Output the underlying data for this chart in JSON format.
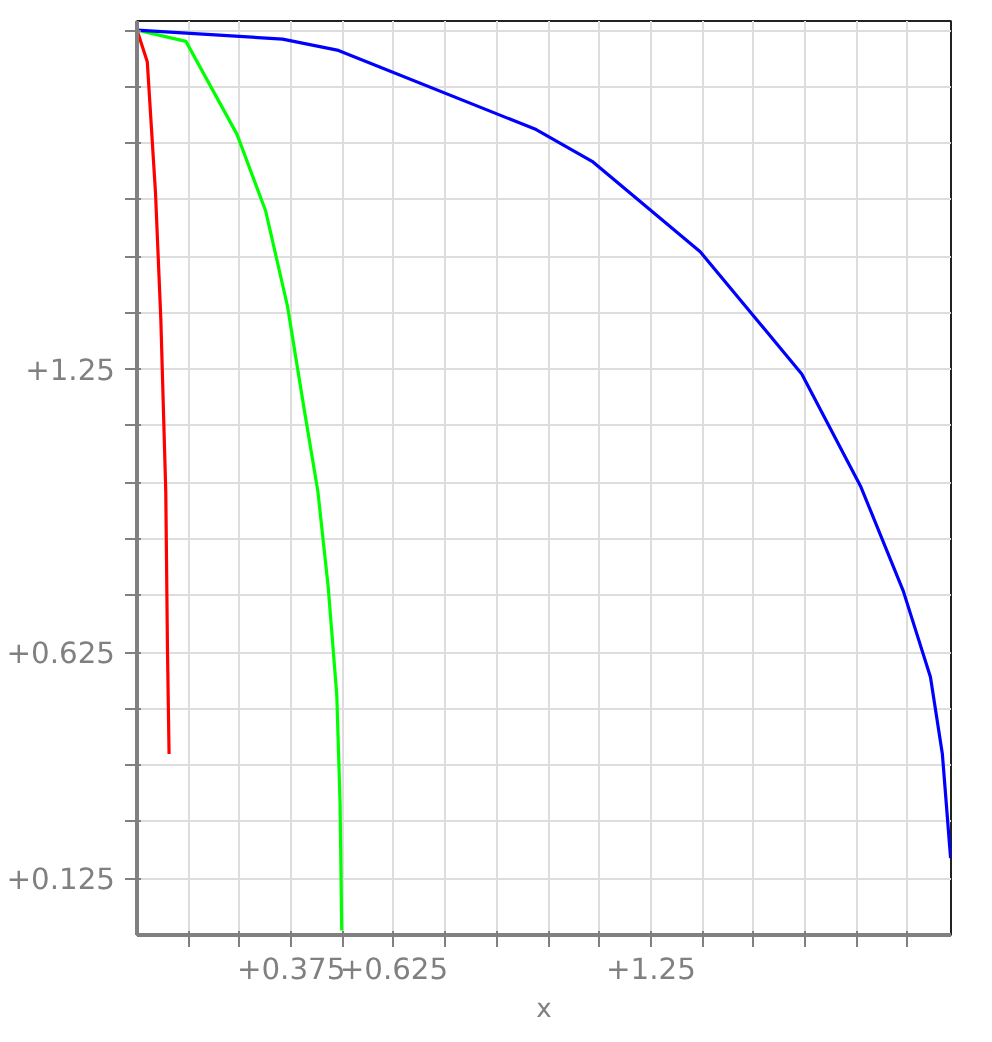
{
  "chart_data": {
    "type": "line",
    "xlabel": "x",
    "xlim": [
      0,
      1.98
    ],
    "ylim": [
      0,
      2.02
    ],
    "xticks": [
      {
        "value": 0.125,
        "label": null
      },
      {
        "value": 0.25,
        "label": null
      },
      {
        "value": 0.375,
        "label": "+0.375"
      },
      {
        "value": 0.5,
        "label": null
      },
      {
        "value": 0.625,
        "label": "+0.625"
      },
      {
        "value": 0.75,
        "label": null
      },
      {
        "value": 0.875,
        "label": null
      },
      {
        "value": 1.0,
        "label": null
      },
      {
        "value": 1.125,
        "label": null
      },
      {
        "value": 1.25,
        "label": "+1.25"
      },
      {
        "value": 1.375,
        "label": null
      },
      {
        "value": 1.5,
        "label": null
      },
      {
        "value": 1.625,
        "label": null
      },
      {
        "value": 1.75,
        "label": null
      },
      {
        "value": 1.875,
        "label": null
      }
    ],
    "yticks": [
      {
        "value": 0.125,
        "label": "+0.125"
      },
      {
        "value": 0.25,
        "label": null
      },
      {
        "value": 0.375,
        "label": null
      },
      {
        "value": 0.5,
        "label": null
      },
      {
        "value": 0.625,
        "label": "+0.625"
      },
      {
        "value": 0.75,
        "label": null
      },
      {
        "value": 0.875,
        "label": null
      },
      {
        "value": 1.0,
        "label": null
      },
      {
        "value": 1.125,
        "label": null
      },
      {
        "value": 1.25,
        "label": "+1.25"
      },
      {
        "value": 1.375,
        "label": null
      },
      {
        "value": 1.5,
        "label": null
      },
      {
        "value": 1.625,
        "label": null
      },
      {
        "value": 1.75,
        "label": null
      },
      {
        "value": 1.875,
        "label": null
      },
      {
        "value": 2.0,
        "label": null
      }
    ],
    "grid": true,
    "marker": "none",
    "line_style": "solid",
    "series": [
      {
        "color": "#ff0000",
        "x": [
          0,
          0.025,
          0.045,
          0.058,
          0.07,
          0.074,
          0.078
        ],
        "values": [
          2.0,
          1.93,
          1.64,
          1.36,
          0.98,
          0.64,
          0.4
        ]
      },
      {
        "color": "#00ff00",
        "x": [
          0,
          0.119,
          0.243,
          0.313,
          0.366,
          0.407,
          0.44,
          0.465,
          0.486,
          0.494,
          0.498
        ],
        "values": [
          2.0,
          1.975,
          1.77,
          1.6,
          1.39,
          1.16,
          0.98,
          0.77,
          0.53,
          0.29,
          0.01
        ]
      },
      {
        "color": "#0000ff",
        "x": [
          0,
          0.354,
          0.49,
          0.971,
          1.107,
          1.37,
          1.617,
          1.761,
          1.864,
          1.93,
          1.959,
          1.979
        ],
        "values": [
          2.0,
          1.98,
          1.955,
          1.78,
          1.71,
          1.51,
          1.24,
          0.99,
          0.76,
          0.57,
          0.4,
          0.17
        ]
      }
    ]
  }
}
